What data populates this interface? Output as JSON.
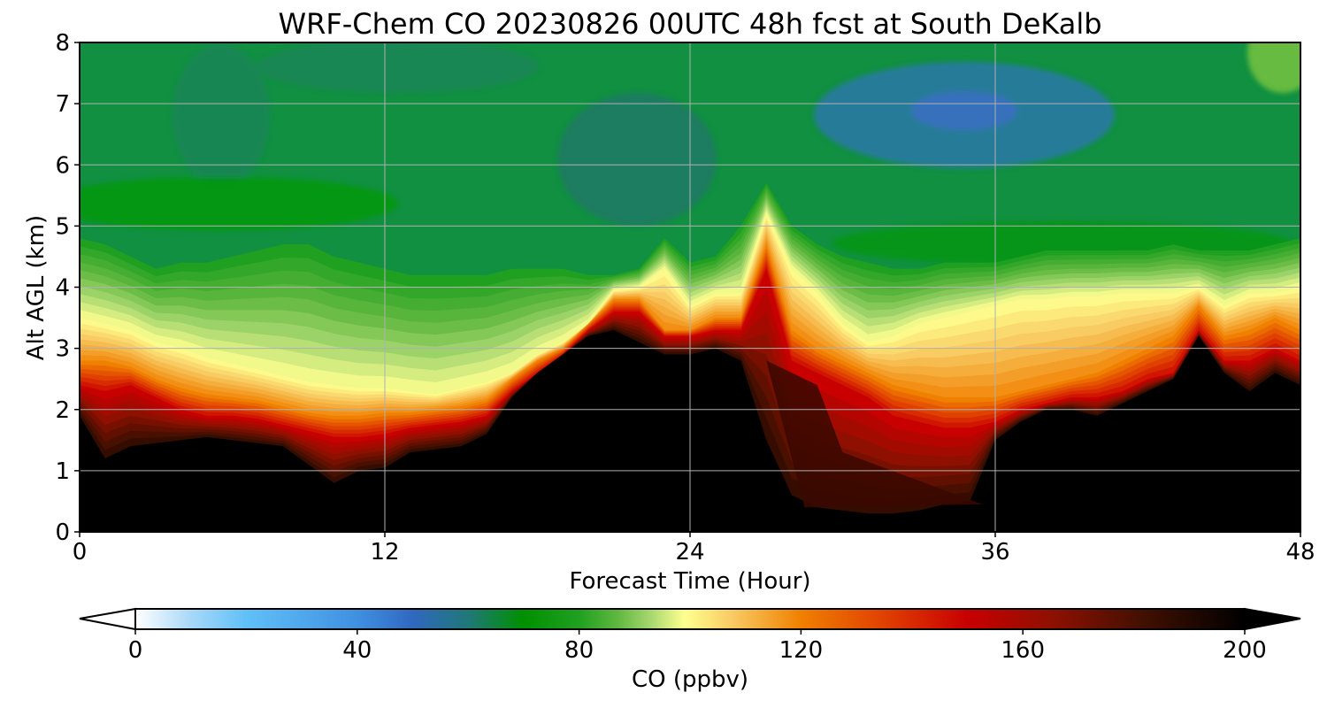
{
  "chart_data": {
    "type": "heatmap",
    "title": "WRF-Chem CO  20230826 00UTC 48h fcst at South DeKalb",
    "xlabel": "Forecast Time (Hour)",
    "ylabel": "Alt AGL (km)",
    "xlim": [
      0,
      48
    ],
    "ylim": [
      0,
      8
    ],
    "xticks": [
      "0",
      "12",
      "24",
      "36",
      "48"
    ],
    "yticks": [
      "0",
      "1",
      "2",
      "3",
      "4",
      "5",
      "6",
      "7",
      "8"
    ],
    "grid": true,
    "colorbar": {
      "label": "CO  (ppbv)",
      "range": [
        0,
        200
      ],
      "ticks": [
        "0",
        "40",
        "80",
        "120",
        "160",
        "200"
      ],
      "extend": "both",
      "stops": [
        {
          "v": 0,
          "c": "#ffffff"
        },
        {
          "v": 10,
          "c": "#a8d8f8"
        },
        {
          "v": 20,
          "c": "#60c0f8"
        },
        {
          "v": 40,
          "c": "#4090e0"
        },
        {
          "v": 50,
          "c": "#3068c0"
        },
        {
          "v": 60,
          "c": "#207878"
        },
        {
          "v": 70,
          "c": "#009000"
        },
        {
          "v": 80,
          "c": "#20a020"
        },
        {
          "v": 87,
          "c": "#60b840"
        },
        {
          "v": 93,
          "c": "#a8d870"
        },
        {
          "v": 99,
          "c": "#ffff90"
        },
        {
          "v": 108,
          "c": "#f8c860"
        },
        {
          "v": 120,
          "c": "#f08000"
        },
        {
          "v": 135,
          "c": "#e04000"
        },
        {
          "v": 150,
          "c": "#c80000"
        },
        {
          "v": 165,
          "c": "#901000"
        },
        {
          "v": 182,
          "c": "#401000"
        },
        {
          "v": 200,
          "c": "#000000"
        }
      ]
    },
    "profiles": {
      "times": [
        0,
        1,
        2,
        3,
        4,
        5,
        6,
        7,
        8,
        9,
        10,
        11,
        12,
        13,
        14,
        15,
        16,
        17,
        18,
        19,
        20,
        21,
        22,
        23,
        24,
        25,
        26,
        27,
        28,
        29,
        30,
        31,
        32,
        33,
        34,
        35,
        36,
        37,
        38,
        39,
        40,
        41,
        42,
        43,
        44,
        45,
        46,
        47,
        48
      ],
      "surface_top": [
        1.9,
        1.2,
        1.4,
        1.45,
        1.5,
        1.55,
        1.5,
        1.45,
        1.4,
        1.1,
        0.8,
        1.0,
        1.05,
        1.3,
        1.35,
        1.4,
        1.6,
        2.2,
        2.6,
        2.9,
        3.2,
        3.3,
        3.1,
        2.9,
        2.9,
        3.0,
        2.8,
        1.5,
        0.6,
        0.4,
        0.35,
        0.3,
        0.3,
        0.35,
        0.45,
        0.5,
        1.5,
        1.8,
        2.0,
        2.0,
        1.9,
        2.1,
        2.3,
        2.5,
        3.2,
        2.6,
        2.3,
        2.6,
        2.4
      ],
      "red_top": [
        2.4,
        2.3,
        2.4,
        2.2,
        2.0,
        1.9,
        1.9,
        1.85,
        1.75,
        1.65,
        1.55,
        1.55,
        1.6,
        1.7,
        1.75,
        1.8,
        1.9,
        2.3,
        2.6,
        2.9,
        3.3,
        3.6,
        3.6,
        3.2,
        3.2,
        3.3,
        3.3,
        4.3,
        2.8,
        2.6,
        2.4,
        2.2,
        1.9,
        1.8,
        1.7,
        1.7,
        1.8,
        2.0,
        2.1,
        2.2,
        2.2,
        2.3,
        2.5,
        2.6,
        3.3,
        2.8,
        2.8,
        3.0,
        2.8
      ],
      "orange_top": [
        2.8,
        2.8,
        2.7,
        2.5,
        2.35,
        2.25,
        2.2,
        2.15,
        2.05,
        1.95,
        1.9,
        1.9,
        1.95,
        1.95,
        2.0,
        2.05,
        2.15,
        2.5,
        2.8,
        3.0,
        3.4,
        3.8,
        3.8,
        3.3,
        3.3,
        3.5,
        3.5,
        4.7,
        3.3,
        3.0,
        2.8,
        2.6,
        2.4,
        2.3,
        2.2,
        2.2,
        2.2,
        2.3,
        2.4,
        2.5,
        2.6,
        2.8,
        3.0,
        3.2,
        3.7,
        3.2,
        3.3,
        3.5,
        3.3
      ],
      "yellow_top": [
        3.5,
        3.4,
        3.3,
        3.1,
        3.0,
        2.85,
        2.75,
        2.65,
        2.55,
        2.45,
        2.4,
        2.35,
        2.35,
        2.3,
        2.25,
        2.35,
        2.45,
        2.6,
        2.9,
        3.1,
        3.4,
        3.95,
        4.0,
        4.3,
        3.7,
        3.9,
        3.9,
        5.2,
        4.3,
        3.9,
        3.4,
        3.1,
        3.2,
        3.4,
        3.5,
        3.6,
        3.7,
        3.8,
        3.8,
        3.85,
        3.85,
        3.9,
        3.9,
        3.9,
        4.0,
        3.7,
        3.9,
        3.9,
        4.0
      ],
      "green_top": [
        4.8,
        4.7,
        4.5,
        4.3,
        4.4,
        4.4,
        4.5,
        4.6,
        4.7,
        4.7,
        4.5,
        4.4,
        4.3,
        4.2,
        4.2,
        4.2,
        4.2,
        4.3,
        4.3,
        4.3,
        4.2,
        4.2,
        4.3,
        4.8,
        4.4,
        4.5,
        5.0,
        5.7,
        5.0,
        4.7,
        4.5,
        4.4,
        4.3,
        4.3,
        4.4,
        4.4,
        4.4,
        4.5,
        4.6,
        4.6,
        4.6,
        4.6,
        4.6,
        4.7,
        4.6,
        4.6,
        4.6,
        4.7,
        4.8
      ]
    }
  }
}
